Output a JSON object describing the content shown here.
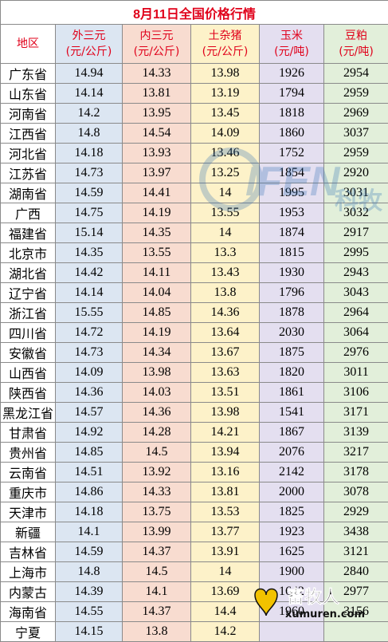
{
  "title": "8月11日全国价格行情",
  "headers": {
    "region": "地区",
    "wai": {
      "line1": "外三元",
      "line2": "(元/公斤)"
    },
    "nei": {
      "line1": "内三元",
      "line2": "(元/公斤)"
    },
    "tu": {
      "line1": "土杂猪",
      "line2": "(元/公斤)"
    },
    "corn": {
      "line1": "玉米",
      "line2": "(元/吨)"
    },
    "soy": {
      "line1": "豆粕",
      "line2": "(元/吨)"
    }
  },
  "rows": [
    {
      "region": "广东省",
      "wai": "14.94",
      "nei": "14.33",
      "tu": "13.98",
      "corn": "1926",
      "soy": "2954"
    },
    {
      "region": "山东省",
      "wai": "14.14",
      "nei": "13.81",
      "tu": "13.19",
      "corn": "1794",
      "soy": "2959"
    },
    {
      "region": "河南省",
      "wai": "14.2",
      "nei": "13.95",
      "tu": "13.45",
      "corn": "1818",
      "soy": "2969"
    },
    {
      "region": "江西省",
      "wai": "14.8",
      "nei": "14.54",
      "tu": "14.09",
      "corn": "1860",
      "soy": "3037"
    },
    {
      "region": "河北省",
      "wai": "14.18",
      "nei": "13.93",
      "tu": "13.46",
      "corn": "1752",
      "soy": "2959"
    },
    {
      "region": "江苏省",
      "wai": "14.73",
      "nei": "13.97",
      "tu": "13.25",
      "corn": "1854",
      "soy": "2920"
    },
    {
      "region": "湖南省",
      "wai": "14.59",
      "nei": "14.41",
      "tu": "14",
      "corn": "1995",
      "soy": "3031"
    },
    {
      "region": "广西",
      "wai": "14.75",
      "nei": "14.19",
      "tu": "13.55",
      "corn": "1953",
      "soy": "3032"
    },
    {
      "region": "福建省",
      "wai": "15.14",
      "nei": "14.35",
      "tu": "14",
      "corn": "1874",
      "soy": "2917"
    },
    {
      "region": "北京市",
      "wai": "14.35",
      "nei": "13.55",
      "tu": "13.3",
      "corn": "1815",
      "soy": "2995"
    },
    {
      "region": "湖北省",
      "wai": "14.42",
      "nei": "14.11",
      "tu": "13.43",
      "corn": "1930",
      "soy": "2943"
    },
    {
      "region": "辽宁省",
      "wai": "14.14",
      "nei": "14.04",
      "tu": "13.8",
      "corn": "1796",
      "soy": "3043"
    },
    {
      "region": "浙江省",
      "wai": "15.55",
      "nei": "14.85",
      "tu": "14.36",
      "corn": "1878",
      "soy": "2964"
    },
    {
      "region": "四川省",
      "wai": "14.72",
      "nei": "14.19",
      "tu": "13.64",
      "corn": "2030",
      "soy": "3064"
    },
    {
      "region": "安徽省",
      "wai": "14.73",
      "nei": "14.34",
      "tu": "13.67",
      "corn": "1875",
      "soy": "2976"
    },
    {
      "region": "山西省",
      "wai": "14.09",
      "nei": "13.98",
      "tu": "13.63",
      "corn": "1820",
      "soy": "3011"
    },
    {
      "region": "陕西省",
      "wai": "14.36",
      "nei": "14.03",
      "tu": "13.51",
      "corn": "1861",
      "soy": "3106"
    },
    {
      "region": "黑龙江省",
      "wai": "14.57",
      "nei": "14.36",
      "tu": "13.98",
      "corn": "1541",
      "soy": "3171"
    },
    {
      "region": "甘肃省",
      "wai": "14.92",
      "nei": "14.28",
      "tu": "14.21",
      "corn": "1867",
      "soy": "3139"
    },
    {
      "region": "贵州省",
      "wai": "14.85",
      "nei": "14.5",
      "tu": "13.94",
      "corn": "2076",
      "soy": "3217"
    },
    {
      "region": "云南省",
      "wai": "14.51",
      "nei": "13.92",
      "tu": "13.16",
      "corn": "2142",
      "soy": "3178"
    },
    {
      "region": "重庆市",
      "wai": "14.86",
      "nei": "14.33",
      "tu": "13.81",
      "corn": "2000",
      "soy": "3078"
    },
    {
      "region": "天津市",
      "wai": "14.18",
      "nei": "13.75",
      "tu": "13.53",
      "corn": "1825",
      "soy": "2929"
    },
    {
      "region": "新疆",
      "wai": "14.1",
      "nei": "13.99",
      "tu": "13.77",
      "corn": "1923",
      "soy": "3438"
    },
    {
      "region": "吉林省",
      "wai": "14.59",
      "nei": "14.37",
      "tu": "13.91",
      "corn": "1625",
      "soy": "3121"
    },
    {
      "region": "上海市",
      "wai": "14.8",
      "nei": "14.5",
      "tu": "14",
      "corn": "1900",
      "soy": "2840"
    },
    {
      "region": "内蒙古",
      "wai": "14.39",
      "nei": "14.1",
      "tu": "13.69",
      "corn": "1642",
      "soy": "2977"
    },
    {
      "region": "海南省",
      "wai": "14.55",
      "nei": "14.37",
      "tu": "14.4",
      "corn": "1960",
      "soy": "3156"
    },
    {
      "region": "宁夏",
      "wai": "14.15",
      "nei": "13.8",
      "tu": "14.2",
      "corn": "",
      "soy": ""
    }
  ],
  "watermark": {
    "latin": "IFEN",
    "cjk": "科牧"
  },
  "logo": {
    "brand": "畜牧人",
    "domain": "xumuren.com"
  },
  "colors": {
    "title_red": "#e0001a",
    "wai_bg": "#dce6f2",
    "nei_bg": "#f8dcd0",
    "tu_bg": "#fdf2c9",
    "corn_bg": "#e4dff0",
    "soy_bg": "#e2efda"
  }
}
